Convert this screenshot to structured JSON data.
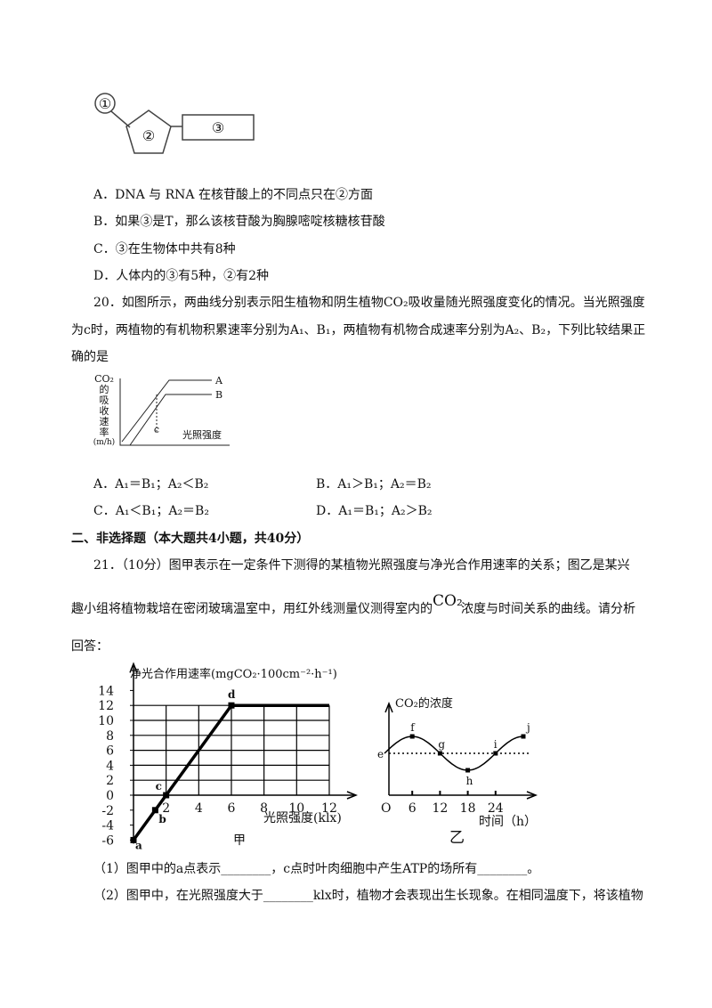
{
  "q19_figure": {
    "labels": [
      "①",
      "②",
      "③"
    ]
  },
  "q19_options": [
    "A．DNA 与 RNA 在核苷酸上的不同点只在②方面",
    "B．如果③是T，那么该核苷酸为胸腺嘧啶核糖核苷酸",
    "C．③在生物体中共有8种",
    "D．人体内的③有5种，②有2种"
  ],
  "q20": {
    "lines": [
      "20．如图所示，两曲线分别表示阳生植物和阴生植物CO₂吸收量随光照强度变化的情况。当光照强度",
      "为c时，两植物的有机物积累速率分别为A₁、B₁，两植物有机物合成速率分别为A₂、B₂，下列比较结果正",
      "确的是"
    ],
    "figure": {
      "y_label": [
        "CO₂",
        "的",
        "吸",
        "收",
        "速",
        "率",
        "(m/h)"
      ],
      "x_label": "光照强度",
      "c": "c",
      "curves": [
        "A",
        "B"
      ]
    },
    "options": [
      "A．A₁＝B₁；A₂＜B₂",
      "B．A₁＞B₁；A₂＝B₂",
      "C．A₁＜B₁；A₂＝B₂",
      "D．A₁＝B₁；A₂＞B₂"
    ]
  },
  "section2": {
    "title": "二、非选择题（本大题共4小题，共40分）"
  },
  "q21": {
    "line1": "21．（10分）图甲表示在一定条件下测得的某植物光照强度与净光合作用速率的关系；图乙是某兴",
    "line2_before": "趣小组将植物栽培在密闭玻璃温室中，用红外线测量仪测得室内的",
    "line2_co2": "CO₂",
    "line2_after": "浓度与时间关系的曲线。请分析",
    "line3": "回答："
  },
  "chart_jia": {
    "y_label": "净光合作用速率(mgCO₂·100cm⁻²·h⁻¹)",
    "x_label": "光照强度(klx)",
    "caption": "甲",
    "yticks": [
      -6,
      -4,
      -2,
      0,
      2,
      4,
      6,
      8,
      10,
      12,
      14
    ],
    "xticks": [
      2,
      4,
      6,
      8,
      10,
      12
    ],
    "line": {
      "x": [
        0,
        6,
        12
      ],
      "y": [
        -6,
        12,
        12
      ]
    },
    "points": [
      {
        "label": "a",
        "x": 0,
        "y": -6
      },
      {
        "label": "b",
        "x": 1.33,
        "y": -2
      },
      {
        "label": "c",
        "x": 2,
        "y": 0
      },
      {
        "label": "d",
        "x": 6,
        "y": 12
      }
    ]
  },
  "chart_yi": {
    "y_label": "CO₂的浓度",
    "x_label": "时间（h）",
    "origin": "O",
    "caption": "乙",
    "xticks": [
      6,
      12,
      18,
      24
    ],
    "points": [
      {
        "label": "e",
        "t": 0
      },
      {
        "label": "f",
        "t": 6
      },
      {
        "label": "g",
        "t": 12
      },
      {
        "label": "h",
        "t": 18
      },
      {
        "label": "i",
        "t": 24
      },
      {
        "label": "j",
        "t": 30
      }
    ]
  },
  "sub_questions": [
    "（1）图甲中的a点表示________，c点时叶肉细胞中产生ATP的场所有________。",
    "（2）图甲中，在光照强度大于________klx时，植物才会表现出生长现象。在相同温度下，将该植物"
  ]
}
